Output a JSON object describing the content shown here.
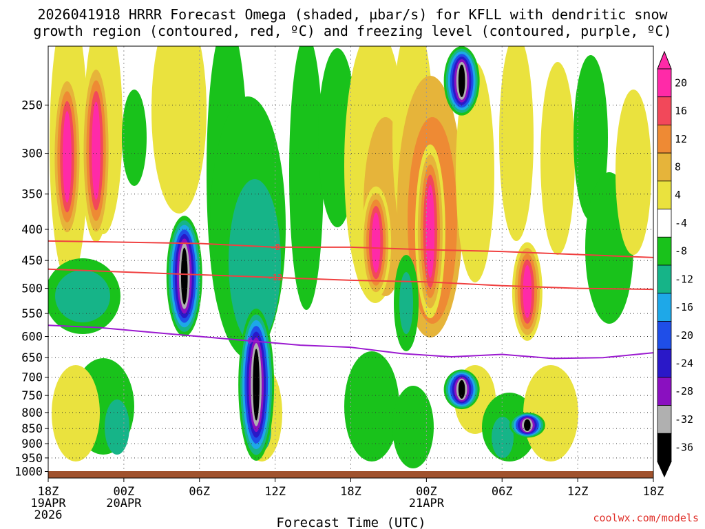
{
  "chart_data": {
    "type": "heatmap",
    "title_lines": [
      "2026041918 HRRR Forecast Omega (shaded, µbar/s) for KFLL with dendritic snow",
      "growth region (contoured, red, ºC) and freezing level (contoured, purple, ºC)"
    ],
    "xlabel": "Forecast Time (UTC)",
    "ylabel": "",
    "credit": "coolwx.com/models",
    "x_range_hours": [
      0,
      48
    ],
    "x_ticks": [
      {
        "hour": 0,
        "lines": [
          "18Z",
          "19APR",
          "2026"
        ]
      },
      {
        "hour": 6,
        "lines": [
          "00Z",
          "20APR"
        ]
      },
      {
        "hour": 12,
        "lines": [
          "06Z"
        ]
      },
      {
        "hour": 18,
        "lines": [
          "12Z"
        ]
      },
      {
        "hour": 24,
        "lines": [
          "18Z"
        ]
      },
      {
        "hour": 30,
        "lines": [
          "00Z",
          "21APR"
        ]
      },
      {
        "hour": 36,
        "lines": [
          "06Z"
        ]
      },
      {
        "hour": 42,
        "lines": [
          "12Z"
        ]
      },
      {
        "hour": 48,
        "lines": [
          "18Z"
        ]
      }
    ],
    "y_range_hpa": [
      1025,
      200
    ],
    "y_ticks": [
      250,
      300,
      350,
      400,
      450,
      500,
      550,
      600,
      650,
      700,
      750,
      800,
      850,
      900,
      950,
      1000
    ],
    "colorbar": {
      "labels": [
        "20",
        "16",
        "12",
        "8",
        "4",
        "-4",
        "-8",
        "-12",
        "-16",
        "-20",
        "-24",
        "-28",
        "-32",
        "-36"
      ],
      "colors": [
        "#ff2aa8",
        "#f2485a",
        "#ee8a34",
        "#e6b43a",
        "#eae23e",
        "#ffffff",
        "#19c21b",
        "#16b488",
        "#1ea8e8",
        "#1f4ee8",
        "#2a18c8",
        "#8a10c0",
        "#b0b0b0",
        "#000000"
      ]
    },
    "contours": [
      {
        "label": "-8",
        "color": "#f04040",
        "hours": [
          0,
          6,
          12,
          18,
          24,
          30,
          36,
          42,
          48
        ],
        "hpa": [
          418,
          420,
          422,
          428,
          428,
          432,
          435,
          440,
          445
        ]
      },
      {
        "label": "-12",
        "color": "#f04040",
        "hours": [
          0,
          6,
          12,
          18,
          24,
          30,
          36,
          42,
          48
        ],
        "hpa": [
          465,
          470,
          475,
          480,
          485,
          488,
          495,
          500,
          502
        ]
      },
      {
        "label": "0",
        "color": "#9b1ad0",
        "hours": [
          0,
          4,
          8,
          12,
          16,
          20,
          24,
          28,
          32,
          36,
          40,
          44,
          48
        ],
        "hpa": [
          575,
          580,
          590,
          600,
          610,
          620,
          625,
          640,
          648,
          642,
          652,
          650,
          638
        ]
      }
    ],
    "cells": [
      {
        "hour": 1.5,
        "hpa_top": 220,
        "hpa_bot": 420,
        "peak": 20
      },
      {
        "hour": 3.8,
        "hpa_top": 210,
        "hpa_bot": 420,
        "peak": 20
      },
      {
        "hour": 10.8,
        "hpa_top": 380,
        "hpa_bot": 600,
        "peak": -40
      },
      {
        "hour": 16.5,
        "hpa_top": 540,
        "hpa_bot": 960,
        "peak": -40
      },
      {
        "hour": 26.0,
        "hpa_top": 340,
        "hpa_bot": 520,
        "peak": 20
      },
      {
        "hour": 30.3,
        "hpa_top": 290,
        "hpa_bot": 560,
        "peak": 20
      },
      {
        "hour": 32.8,
        "hpa_top": 200,
        "hpa_bot": 260,
        "peak": -36
      },
      {
        "hour": 32.8,
        "hpa_top": 680,
        "hpa_bot": 790,
        "peak": -36
      },
      {
        "hour": 38.0,
        "hpa_top": 420,
        "hpa_bot": 610,
        "peak": 20
      },
      {
        "hour": 38.0,
        "hpa_top": 800,
        "hpa_bot": 880,
        "peak": -36
      }
    ]
  }
}
